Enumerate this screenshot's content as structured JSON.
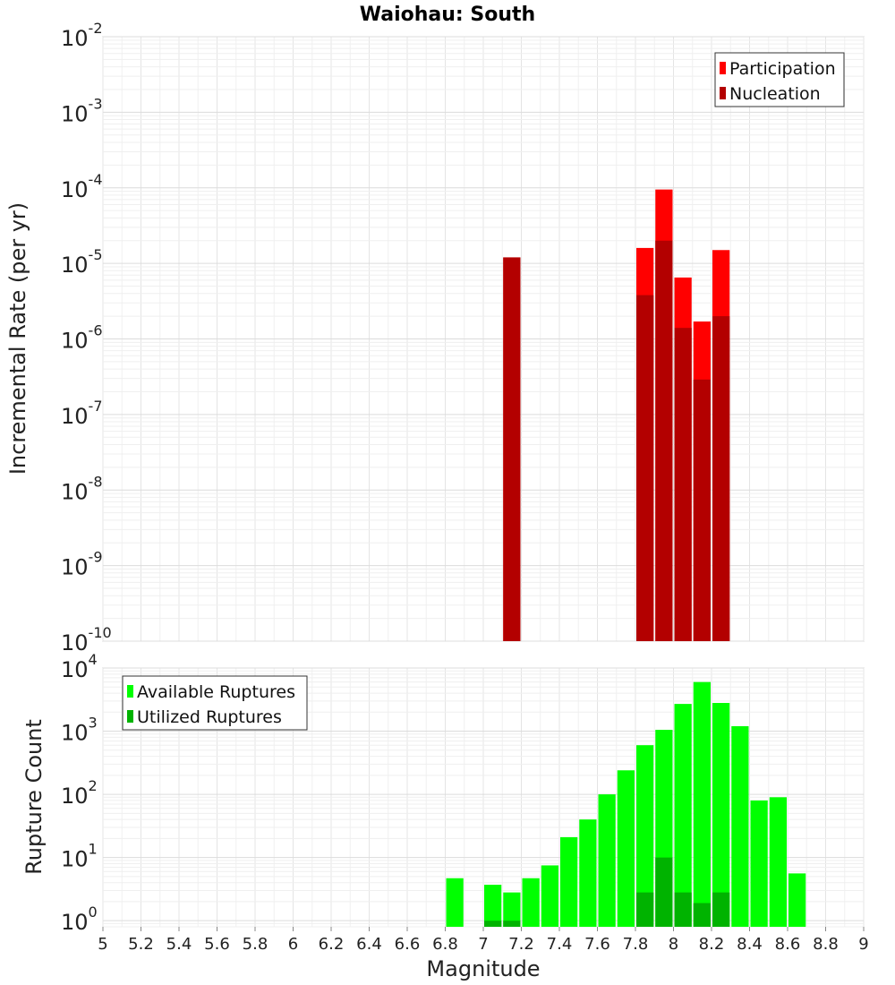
{
  "chart_data": [
    {
      "type": "bar",
      "title": "Waiohau: South",
      "xlabel": "Magnitude",
      "ylabel": "Incremental Rate (per yr)",
      "yscale": "log",
      "ylim": [
        1e-10,
        0.01
      ],
      "xlim": [
        5,
        9
      ],
      "bin_width": 0.1,
      "grid": true,
      "legend_position": "top-right",
      "series": [
        {
          "name": "Participation",
          "color": "#ff0000",
          "points": [
            {
              "x": 7.15,
              "y": 1.2e-05
            },
            {
              "x": 7.85,
              "y": 1.6e-05
            },
            {
              "x": 7.95,
              "y": 9.5e-05
            },
            {
              "x": 8.05,
              "y": 6.5e-06
            },
            {
              "x": 8.15,
              "y": 1.7e-06
            },
            {
              "x": 8.25,
              "y": 1.5e-05
            }
          ]
        },
        {
          "name": "Nucleation",
          "color": "#b30000",
          "points": [
            {
              "x": 7.15,
              "y": 1.2e-05
            },
            {
              "x": 7.85,
              "y": 3.8e-06
            },
            {
              "x": 7.95,
              "y": 2e-05
            },
            {
              "x": 8.05,
              "y": 1.4e-06
            },
            {
              "x": 8.15,
              "y": 2.9e-07
            },
            {
              "x": 8.25,
              "y": 2e-06
            }
          ]
        }
      ]
    },
    {
      "type": "bar",
      "xlabel": "Magnitude",
      "ylabel": "Rupture Count",
      "yscale": "log",
      "ylim": [
        0.8,
        10000
      ],
      "xlim": [
        5,
        9
      ],
      "bin_width": 0.1,
      "grid": true,
      "legend_position": "top-left",
      "x_ticks": [
        "5",
        "5.2",
        "5.4",
        "5.6",
        "5.8",
        "6",
        "6.2",
        "6.4",
        "6.6",
        "6.8",
        "7",
        "7.2",
        "7.4",
        "7.6",
        "7.8",
        "8",
        "8.2",
        "8.4",
        "8.6",
        "8.8",
        "9"
      ],
      "series": [
        {
          "name": "Available Ruptures",
          "color": "#00ff00",
          "points": [
            {
              "x": 6.85,
              "y": 4.7
            },
            {
              "x": 7.05,
              "y": 3.7
            },
            {
              "x": 7.15,
              "y": 2.8
            },
            {
              "x": 7.25,
              "y": 4.7
            },
            {
              "x": 7.35,
              "y": 7.5
            },
            {
              "x": 7.45,
              "y": 21
            },
            {
              "x": 7.55,
              "y": 40
            },
            {
              "x": 7.65,
              "y": 100
            },
            {
              "x": 7.75,
              "y": 240
            },
            {
              "x": 7.85,
              "y": 600
            },
            {
              "x": 7.95,
              "y": 1050
            },
            {
              "x": 8.05,
              "y": 2700
            },
            {
              "x": 8.15,
              "y": 6000
            },
            {
              "x": 8.25,
              "y": 2800
            },
            {
              "x": 8.35,
              "y": 1200
            },
            {
              "x": 8.45,
              "y": 80
            },
            {
              "x": 8.55,
              "y": 90
            },
            {
              "x": 8.65,
              "y": 5.6
            }
          ]
        },
        {
          "name": "Utilized Ruptures",
          "color": "#00b300",
          "points": [
            {
              "x": 7.05,
              "y": 1
            },
            {
              "x": 7.15,
              "y": 1
            },
            {
              "x": 7.85,
              "y": 2.8
            },
            {
              "x": 7.95,
              "y": 10
            },
            {
              "x": 8.05,
              "y": 2.8
            },
            {
              "x": 8.15,
              "y": 1.9
            },
            {
              "x": 8.25,
              "y": 2.8
            }
          ]
        }
      ]
    }
  ]
}
